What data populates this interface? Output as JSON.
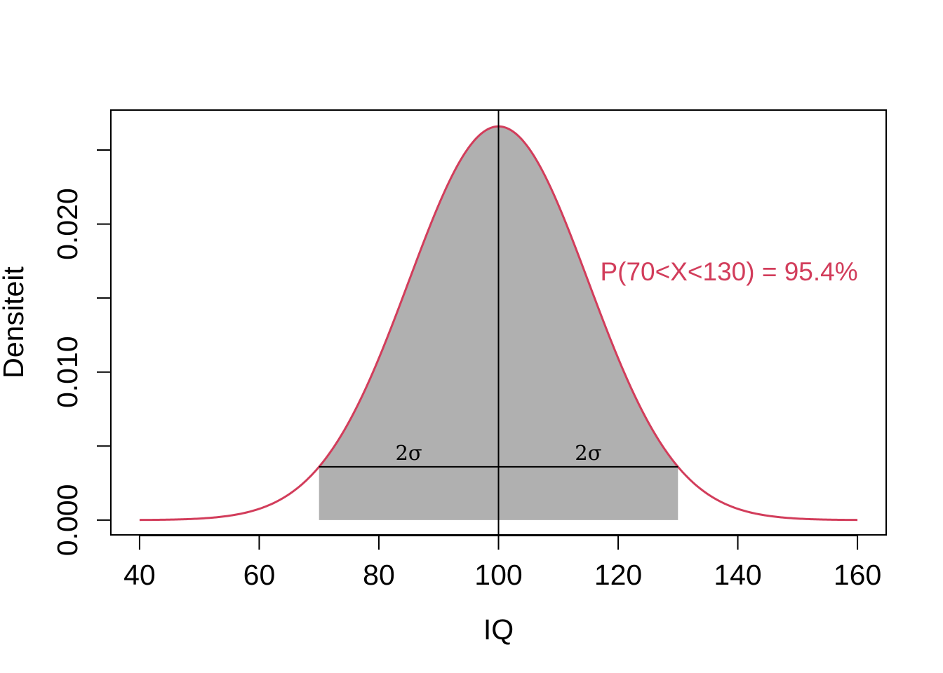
{
  "colors": {
    "curve": "#d23d5b",
    "fill": "#b0b0b0",
    "axis": "#000000",
    "annotation": "#d23d5b"
  },
  "chart_data": {
    "type": "area",
    "distribution": "normal",
    "mean": 100,
    "sd": 15,
    "title": "",
    "xlabel": "IQ",
    "ylabel": "Densiteit",
    "xlim": [
      35.2,
      164.8
    ],
    "ylim": [
      -0.001,
      0.0277
    ],
    "x_ticks": [
      40,
      60,
      80,
      100,
      120,
      140,
      160
    ],
    "x_tick_labels": [
      "40",
      "60",
      "80",
      "100",
      "120",
      "140",
      "160"
    ],
    "y_ticks": [
      0.0,
      0.005,
      0.01,
      0.015,
      0.02,
      0.025
    ],
    "y_tick_labels": [
      "0.000",
      "",
      "0.010",
      "",
      "0.020",
      ""
    ],
    "curve_range": [
      40,
      160
    ],
    "shaded_range": [
      70,
      130
    ],
    "mean_line_x": 100,
    "sigma_segments": [
      {
        "from": 70,
        "to": 100,
        "label": "2σ"
      },
      {
        "from": 100,
        "to": 130,
        "label": "2σ"
      }
    ],
    "annotation": {
      "text": "P(70<X<130) = 95.4%",
      "x": 117,
      "y": 0.0162
    },
    "grid": false,
    "legend": "none"
  }
}
